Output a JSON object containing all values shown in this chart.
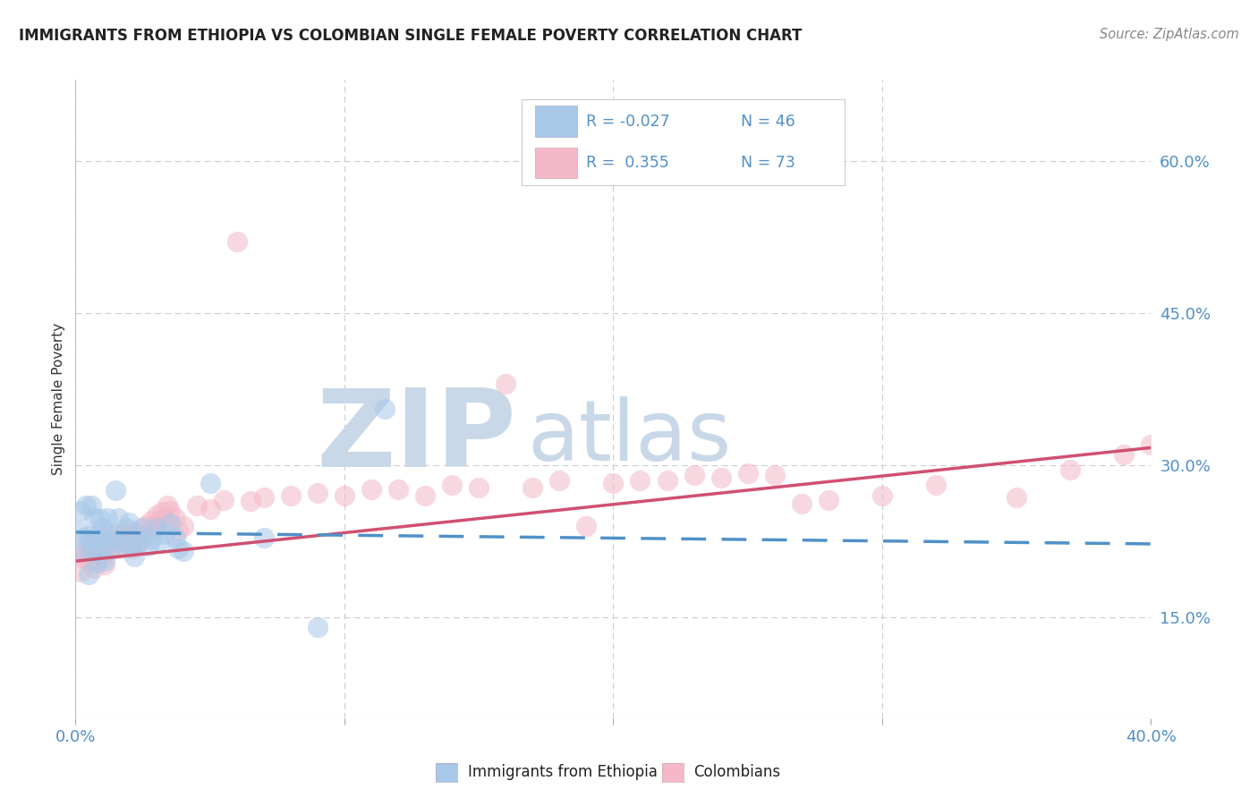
{
  "title": "IMMIGRANTS FROM ETHIOPIA VS COLOMBIAN SINGLE FEMALE POVERTY CORRELATION CHART",
  "source": "Source: ZipAtlas.com",
  "ylabel": "Single Female Poverty",
  "xlim": [
    0.0,
    0.4
  ],
  "ylim": [
    0.05,
    0.68
  ],
  "y_ticks": [
    0.15,
    0.3,
    0.45,
    0.6
  ],
  "y_tick_labels": [
    "15.0%",
    "30.0%",
    "45.0%",
    "60.0%"
  ],
  "x_ticks": [
    0.0,
    0.1,
    0.2,
    0.3,
    0.4
  ],
  "x_tick_labels_show": [
    "0.0%",
    "",
    "",
    "",
    "40.0%"
  ],
  "color_blue_scatter": "#a8c8e8",
  "color_pink_scatter": "#f4b8c8",
  "color_blue_line": "#5090c8",
  "color_pink_line": "#d05070",
  "color_axis_text": "#5090c8",
  "watermark_color_zip": "#c8d8e8",
  "watermark_color_atlas": "#c8d8e8",
  "background_color": "#ffffff",
  "grid_color": "#cccccc",
  "legend_r1": "R = -0.027",
  "legend_n1": "N = 46",
  "legend_r2": "R =  0.355",
  "legend_n2": "N = 73",
  "eth_trend": [
    0.0,
    0.2335,
    0.4,
    0.222
  ],
  "col_trend": [
    0.0,
    0.205,
    0.4,
    0.317
  ],
  "ethiopia_x": [
    0.001,
    0.002,
    0.003,
    0.003,
    0.004,
    0.005,
    0.005,
    0.006,
    0.006,
    0.007,
    0.007,
    0.008,
    0.008,
    0.009,
    0.009,
    0.01,
    0.01,
    0.011,
    0.012,
    0.012,
    0.013,
    0.014,
    0.015,
    0.016,
    0.017,
    0.018,
    0.019,
    0.02,
    0.021,
    0.022,
    0.023,
    0.024,
    0.025,
    0.027,
    0.028,
    0.03,
    0.031,
    0.033,
    0.035,
    0.037,
    0.038,
    0.04,
    0.05,
    0.07,
    0.09,
    0.115
  ],
  "ethiopia_y": [
    0.235,
    0.255,
    0.215,
    0.228,
    0.26,
    0.23,
    0.192,
    0.26,
    0.215,
    0.228,
    0.248,
    0.215,
    0.203,
    0.248,
    0.228,
    0.238,
    0.218,
    0.205,
    0.232,
    0.248,
    0.218,
    0.228,
    0.275,
    0.248,
    0.225,
    0.22,
    0.238,
    0.243,
    0.22,
    0.21,
    0.222,
    0.23,
    0.238,
    0.22,
    0.226,
    0.238,
    0.225,
    0.232,
    0.242,
    0.228,
    0.218,
    0.215,
    0.282,
    0.228,
    0.14,
    0.355
  ],
  "colombian_x": [
    0.001,
    0.002,
    0.003,
    0.004,
    0.005,
    0.006,
    0.006,
    0.007,
    0.008,
    0.009,
    0.01,
    0.01,
    0.011,
    0.012,
    0.013,
    0.014,
    0.015,
    0.016,
    0.017,
    0.018,
    0.019,
    0.02,
    0.021,
    0.022,
    0.023,
    0.024,
    0.025,
    0.026,
    0.027,
    0.028,
    0.029,
    0.03,
    0.031,
    0.032,
    0.033,
    0.034,
    0.035,
    0.037,
    0.038,
    0.04,
    0.045,
    0.05,
    0.055,
    0.06,
    0.065,
    0.07,
    0.08,
    0.09,
    0.1,
    0.11,
    0.12,
    0.13,
    0.14,
    0.15,
    0.16,
    0.17,
    0.18,
    0.19,
    0.2,
    0.21,
    0.22,
    0.23,
    0.24,
    0.25,
    0.26,
    0.27,
    0.28,
    0.3,
    0.32,
    0.35,
    0.37,
    0.39,
    0.4
  ],
  "colombian_y": [
    0.215,
    0.195,
    0.208,
    0.213,
    0.205,
    0.218,
    0.225,
    0.198,
    0.225,
    0.215,
    0.228,
    0.21,
    0.202,
    0.22,
    0.216,
    0.225,
    0.232,
    0.218,
    0.226,
    0.232,
    0.225,
    0.228,
    0.218,
    0.234,
    0.226,
    0.224,
    0.23,
    0.24,
    0.234,
    0.245,
    0.24,
    0.25,
    0.245,
    0.254,
    0.248,
    0.26,
    0.255,
    0.248,
    0.235,
    0.24,
    0.26,
    0.256,
    0.265,
    0.52,
    0.264,
    0.268,
    0.27,
    0.272,
    0.27,
    0.276,
    0.276,
    0.27,
    0.28,
    0.278,
    0.38,
    0.278,
    0.285,
    0.24,
    0.282,
    0.285,
    0.285,
    0.29,
    0.287,
    0.292,
    0.29,
    0.262,
    0.265,
    0.27,
    0.28,
    0.268,
    0.295,
    0.31,
    0.32
  ]
}
